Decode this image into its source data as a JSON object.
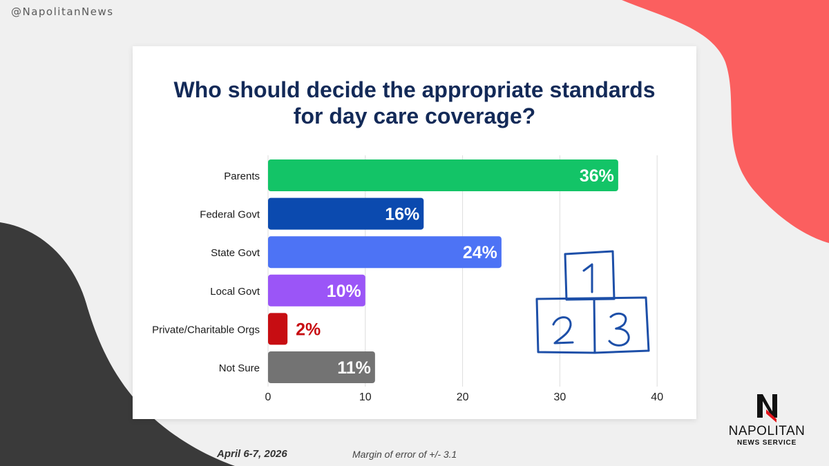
{
  "handle": "@NapolitanNews",
  "footer": {
    "date": "April 6-7, 2026",
    "margin": "Margin of error of +/- 3.1"
  },
  "logo": {
    "name": "NAPOLITAN",
    "sub": "NEWS SERVICE"
  },
  "colors": {
    "title": "#132a58",
    "accent_red": "#fb5f5f",
    "dark_shape": "#3a3a3a"
  },
  "chart_data": {
    "type": "bar",
    "orientation": "horizontal",
    "title_lines": [
      "Who should decide the appropriate standards",
      "for day care coverage?"
    ],
    "categories": [
      "Parents",
      "Federal Govt",
      "State Govt",
      "Local Govt",
      "Private/Charitable Orgs",
      "Not Sure"
    ],
    "values": [
      36,
      16,
      24,
      10,
      2,
      11
    ],
    "value_labels": [
      "36%",
      "16%",
      "24%",
      "10%",
      "2%",
      "11%"
    ],
    "colors": [
      "#13c467",
      "#0b4aaf",
      "#4d73f5",
      "#9b55f7",
      "#c70d12",
      "#737373"
    ],
    "label_inside": [
      true,
      true,
      true,
      true,
      false,
      true
    ],
    "xlim": [
      0,
      40
    ],
    "xticks": [
      0,
      10,
      20,
      30,
      40
    ],
    "grid": true,
    "legend": "none"
  }
}
